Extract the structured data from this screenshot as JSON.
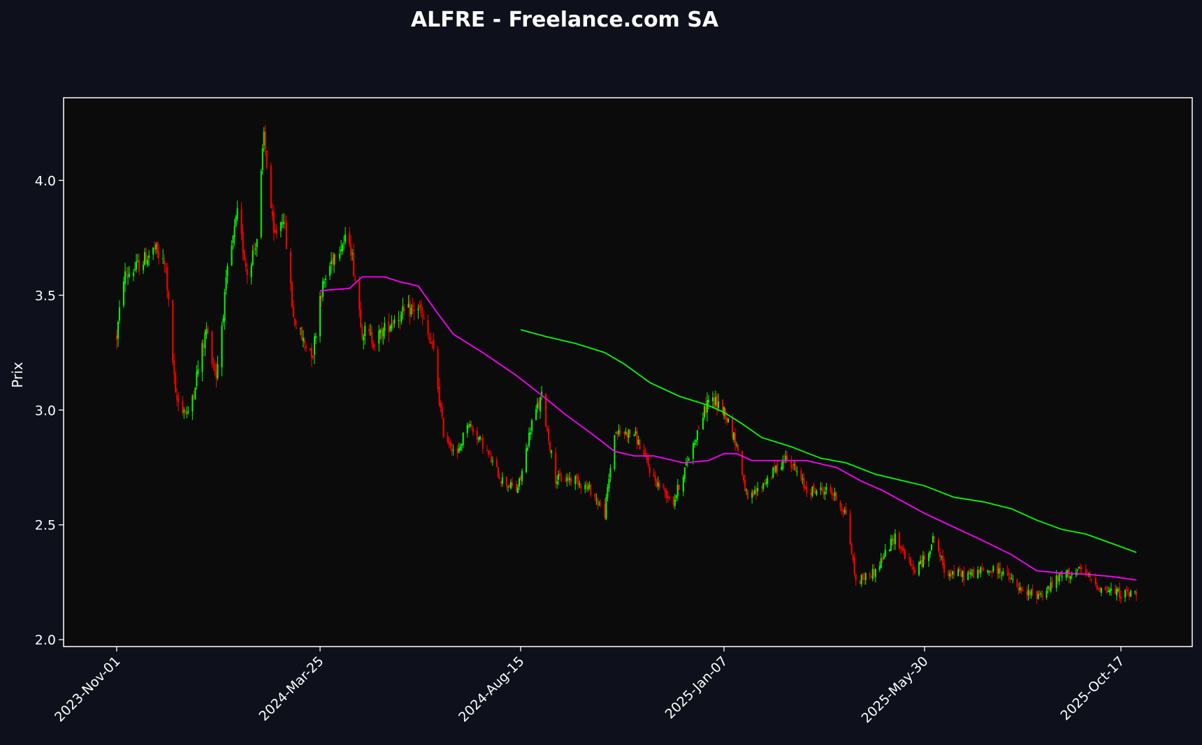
{
  "chart_data": {
    "type": "candlestick",
    "title": "ALFRE - Freelance.com SA",
    "ylabel": "Prix",
    "xlabel": "",
    "x_tick_labels": [
      "2023-Nov-01",
      "2024-Mar-25",
      "2024-Aug-15",
      "2025-Jan-07",
      "2025-May-30",
      "2025-Oct-17"
    ],
    "y_tick_labels": [
      "2.0",
      "2.5",
      "3.0",
      "3.5",
      "4.0"
    ],
    "y_ticks": [
      2.0,
      2.5,
      3.0,
      3.5,
      4.0
    ],
    "ylim": [
      1.97,
      4.36
    ],
    "x_range": [
      "2023-Nov-01",
      "2025-Oct-28"
    ],
    "grid": false,
    "colors": {
      "figure_background": "#0e111b",
      "plot_background": "#0b0b0b",
      "frame": "#ffffff",
      "text": "#ffffff",
      "up_candle": "#00ff00",
      "down_candle": "#ff0000",
      "ma_short": "#ff00ff",
      "ma_long": "#00ff00"
    },
    "price_path": [
      [
        "2023-Nov-01",
        3.32
      ],
      [
        "2023-Nov-06",
        3.58
      ],
      [
        "2023-Nov-15",
        3.62
      ],
      [
        "2023-Nov-28",
        3.7
      ],
      [
        "2023-Dec-06",
        3.62
      ],
      [
        "2023-Dec-13",
        3.05
      ],
      [
        "2023-Dec-22",
        2.98
      ],
      [
        "2024-Jan-04",
        3.35
      ],
      [
        "2024-Jan-11",
        3.15
      ],
      [
        "2024-Jan-19",
        3.6
      ],
      [
        "2024-Jan-26",
        3.85
      ],
      [
        "2024-Feb-02",
        3.6
      ],
      [
        "2024-Feb-09",
        3.75
      ],
      [
        "2024-Feb-14",
        4.2
      ],
      [
        "2024-Feb-21",
        3.75
      ],
      [
        "2024-Feb-28",
        3.85
      ],
      [
        "2024-Mar-06",
        3.4
      ],
      [
        "2024-Mar-13",
        3.3
      ],
      [
        "2024-Mar-20",
        3.25
      ],
      [
        "2024-Mar-25",
        3.5
      ],
      [
        "2024-Apr-05",
        3.7
      ],
      [
        "2024-Apr-15",
        3.75
      ],
      [
        "2024-Apr-24",
        3.35
      ],
      [
        "2024-May-03",
        3.3
      ],
      [
        "2024-May-17",
        3.4
      ],
      [
        "2024-Jun-03",
        3.45
      ],
      [
        "2024-Jun-14",
        3.25
      ],
      [
        "2024-Jun-21",
        2.9
      ],
      [
        "2024-Jul-01",
        2.8
      ],
      [
        "2024-Jul-08",
        2.95
      ],
      [
        "2024-Jul-19",
        2.85
      ],
      [
        "2024-Aug-01",
        2.7
      ],
      [
        "2024-Aug-12",
        2.65
      ],
      [
        "2024-Aug-15",
        2.7
      ],
      [
        "2024-Aug-23",
        2.95
      ],
      [
        "2024-Aug-30",
        3.05
      ],
      [
        "2024-Sep-09",
        2.7
      ],
      [
        "2024-Sep-23",
        2.7
      ],
      [
        "2024-Oct-04",
        2.65
      ],
      [
        "2024-Oct-14",
        2.55
      ],
      [
        "2024-Oct-21",
        2.9
      ],
      [
        "2024-Nov-04",
        2.9
      ],
      [
        "2024-Nov-18",
        2.7
      ],
      [
        "2024-Dec-02",
        2.6
      ],
      [
        "2024-Dec-16",
        2.85
      ],
      [
        "2024-Dec-27",
        3.05
      ],
      [
        "2025-Jan-07",
        3.0
      ],
      [
        "2025-Jan-16",
        2.85
      ],
      [
        "2025-Jan-24",
        2.6
      ],
      [
        "2025-Feb-07",
        2.7
      ],
      [
        "2025-Feb-21",
        2.8
      ],
      [
        "2025-Mar-07",
        2.65
      ],
      [
        "2025-Mar-24",
        2.65
      ],
      [
        "2025-Apr-04",
        2.55
      ],
      [
        "2025-Apr-11",
        2.25
      ],
      [
        "2025-Apr-25",
        2.3
      ],
      [
        "2025-May-09",
        2.45
      ],
      [
        "2025-May-22",
        2.3
      ],
      [
        "2025-May-30",
        2.35
      ],
      [
        "2025-Jun-06",
        2.45
      ],
      [
        "2025-Jun-13",
        2.3
      ],
      [
        "2025-Jun-27",
        2.28
      ],
      [
        "2025-Jul-11",
        2.3
      ],
      [
        "2025-Jul-25",
        2.3
      ],
      [
        "2025-Aug-08",
        2.2
      ],
      [
        "2025-Aug-22",
        2.2
      ],
      [
        "2025-Sep-05",
        2.28
      ],
      [
        "2025-Sep-19",
        2.3
      ],
      [
        "2025-Oct-03",
        2.22
      ],
      [
        "2025-Oct-17",
        2.2
      ],
      [
        "2025-Oct-28",
        2.2
      ]
    ],
    "ma_short": {
      "start": "2024-Mar-25",
      "points": [
        [
          "2024-Mar-25",
          3.52
        ],
        [
          "2024-Apr-15",
          3.53
        ],
        [
          "2024-Apr-24",
          3.58
        ],
        [
          "2024-May-10",
          3.58
        ],
        [
          "2024-May-20",
          3.56
        ],
        [
          "2024-Jun-03",
          3.54
        ],
        [
          "2024-Jun-17",
          3.42
        ],
        [
          "2024-Jun-28",
          3.33
        ],
        [
          "2024-Jul-19",
          3.25
        ],
        [
          "2024-Aug-12",
          3.15
        ],
        [
          "2024-Sep-02",
          3.05
        ],
        [
          "2024-Sep-16",
          2.98
        ],
        [
          "2024-Oct-04",
          2.9
        ],
        [
          "2024-Oct-21",
          2.82
        ],
        [
          "2024-Nov-04",
          2.8
        ],
        [
          "2024-Nov-18",
          2.8
        ],
        [
          "2024-Dec-09",
          2.77
        ],
        [
          "2024-Dec-27",
          2.78
        ],
        [
          "2025-Jan-07",
          2.81
        ],
        [
          "2025-Jan-16",
          2.81
        ],
        [
          "2025-Jan-27",
          2.78
        ],
        [
          "2025-Feb-14",
          2.78
        ],
        [
          "2025-Mar-07",
          2.78
        ],
        [
          "2025-Mar-28",
          2.75
        ],
        [
          "2025-Apr-15",
          2.69
        ],
        [
          "2025-Apr-30",
          2.65
        ],
        [
          "2025-May-15",
          2.6
        ],
        [
          "2025-May-30",
          2.55
        ],
        [
          "2025-Jun-20",
          2.49
        ],
        [
          "2025-Jul-11",
          2.43
        ],
        [
          "2025-Jul-31",
          2.37
        ],
        [
          "2025-Aug-18",
          2.3
        ],
        [
          "2025-Sep-05",
          2.29
        ],
        [
          "2025-Sep-22",
          2.285
        ],
        [
          "2025-Oct-10",
          2.275
        ],
        [
          "2025-Oct-28",
          2.26
        ]
      ]
    },
    "ma_long": {
      "start": "2024-Aug-15",
      "points": [
        [
          "2024-Aug-15",
          3.35
        ],
        [
          "2024-Sep-02",
          3.32
        ],
        [
          "2024-Sep-23",
          3.29
        ],
        [
          "2024-Oct-14",
          3.25
        ],
        [
          "2024-Oct-28",
          3.2
        ],
        [
          "2024-Nov-15",
          3.12
        ],
        [
          "2024-Dec-06",
          3.06
        ],
        [
          "2024-Dec-27",
          3.02
        ],
        [
          "2025-Jan-07",
          2.99
        ],
        [
          "2025-Jan-20",
          2.94
        ],
        [
          "2025-Feb-03",
          2.88
        ],
        [
          "2025-Feb-24",
          2.84
        ],
        [
          "2025-Mar-17",
          2.79
        ],
        [
          "2025-Apr-04",
          2.77
        ],
        [
          "2025-Apr-25",
          2.72
        ],
        [
          "2025-May-16",
          2.69
        ],
        [
          "2025-May-30",
          2.67
        ],
        [
          "2025-Jun-20",
          2.62
        ],
        [
          "2025-Jul-11",
          2.6
        ],
        [
          "2025-Jul-31",
          2.57
        ],
        [
          "2025-Aug-18",
          2.52
        ],
        [
          "2025-Sep-05",
          2.48
        ],
        [
          "2025-Sep-22",
          2.46
        ],
        [
          "2025-Oct-10",
          2.42
        ],
        [
          "2025-Oct-28",
          2.38
        ]
      ]
    }
  }
}
